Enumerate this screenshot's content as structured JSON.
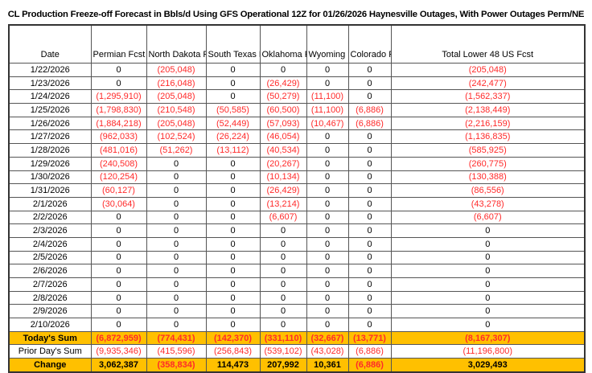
{
  "title": "CL Production Freeze-off Forecast in Bbls/d Using GFS Operational 12Z for 01/26/2026 Haynesville Outages, With Power Outages Perm/NE",
  "colors": {
    "negative": "#ff2a2a",
    "highlight": "#ffc000"
  },
  "columns": [
    "Date",
    "Permian Fcst",
    "North Dakota Fcst",
    "South Texas Fcst",
    "Oklahoma Fcst",
    "Wyoming Fcst",
    "Colorado Fcst",
    "Total Lower 48 US Fcst"
  ],
  "rows": [
    [
      "1/22/2026",
      "0",
      "(205,048)",
      "0",
      "0",
      "0",
      "0",
      "(205,048)"
    ],
    [
      "1/23/2026",
      "0",
      "(216,048)",
      "0",
      "(26,429)",
      "0",
      "0",
      "(242,477)"
    ],
    [
      "1/24/2026",
      "(1,295,910)",
      "(205,048)",
      "0",
      "(50,279)",
      "(11,100)",
      "0",
      "(1,562,337)"
    ],
    [
      "1/25/2026",
      "(1,798,830)",
      "(210,548)",
      "(50,585)",
      "(60,500)",
      "(11,100)",
      "(6,886)",
      "(2,138,449)"
    ],
    [
      "1/26/2026",
      "(1,884,218)",
      "(205,048)",
      "(52,449)",
      "(57,093)",
      "(10,467)",
      "(6,886)",
      "(2,216,159)"
    ],
    [
      "1/27/2026",
      "(962,033)",
      "(102,524)",
      "(26,224)",
      "(46,054)",
      "0",
      "0",
      "(1,136,835)"
    ],
    [
      "1/28/2026",
      "(481,016)",
      "(51,262)",
      "(13,112)",
      "(40,534)",
      "0",
      "0",
      "(585,925)"
    ],
    [
      "1/29/2026",
      "(240,508)",
      "0",
      "0",
      "(20,267)",
      "0",
      "0",
      "(260,775)"
    ],
    [
      "1/30/2026",
      "(120,254)",
      "0",
      "0",
      "(10,134)",
      "0",
      "0",
      "(130,388)"
    ],
    [
      "1/31/2026",
      "(60,127)",
      "0",
      "0",
      "(26,429)",
      "0",
      "0",
      "(86,556)"
    ],
    [
      "2/1/2026",
      "(30,064)",
      "0",
      "0",
      "(13,214)",
      "0",
      "0",
      "(43,278)"
    ],
    [
      "2/2/2026",
      "0",
      "0",
      "0",
      "(6,607)",
      "0",
      "0",
      "(6,607)"
    ],
    [
      "2/3/2026",
      "0",
      "0",
      "0",
      "0",
      "0",
      "0",
      "0"
    ],
    [
      "2/4/2026",
      "0",
      "0",
      "0",
      "0",
      "0",
      "0",
      "0"
    ],
    [
      "2/5/2026",
      "0",
      "0",
      "0",
      "0",
      "0",
      "0",
      "0"
    ],
    [
      "2/6/2026",
      "0",
      "0",
      "0",
      "0",
      "0",
      "0",
      "0"
    ],
    [
      "2/7/2026",
      "0",
      "0",
      "0",
      "0",
      "0",
      "0",
      "0"
    ],
    [
      "2/8/2026",
      "0",
      "0",
      "0",
      "0",
      "0",
      "0",
      "0"
    ],
    [
      "2/9/2026",
      "0",
      "0",
      "0",
      "0",
      "0",
      "0",
      "0"
    ],
    [
      "2/10/2026",
      "0",
      "0",
      "0",
      "0",
      "0",
      "0",
      "0"
    ]
  ],
  "summary": [
    {
      "label": "Today's Sum",
      "highlight": true,
      "bold": true,
      "values": [
        "(6,872,959)",
        "(774,431)",
        "(142,370)",
        "(331,110)",
        "(32,667)",
        "(13,771)",
        "(8,167,307)"
      ]
    },
    {
      "label": "Prior Day's Sum",
      "highlight": false,
      "bold": false,
      "values": [
        "(9,935,346)",
        "(415,596)",
        "(256,843)",
        "(539,102)",
        "(43,028)",
        "(6,886)",
        "(11,196,800)"
      ]
    },
    {
      "label": "Change",
      "highlight": true,
      "bold": true,
      "values": [
        "3,062,387",
        "(358,834)",
        "114,473",
        "207,992",
        "10,361",
        "(6,886)",
        "3,029,493"
      ]
    }
  ]
}
